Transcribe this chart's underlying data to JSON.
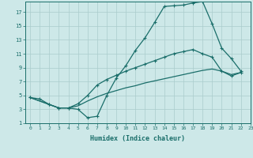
{
  "xlabel": "Humidex (Indice chaleur)",
  "xlim": [
    -0.5,
    23
  ],
  "ylim": [
    1,
    18.5
  ],
  "xticks": [
    0,
    1,
    2,
    3,
    4,
    5,
    6,
    7,
    8,
    9,
    10,
    11,
    12,
    13,
    14,
    15,
    16,
    17,
    18,
    19,
    20,
    21,
    22,
    23
  ],
  "yticks": [
    1,
    3,
    5,
    7,
    9,
    11,
    13,
    15,
    17
  ],
  "bg_color": "#cde8e8",
  "grid_color": "#aacccc",
  "line_color": "#1a6e6a",
  "line1_x": [
    0,
    1,
    2,
    3,
    4,
    5,
    6,
    7,
    8,
    9,
    10,
    11,
    12,
    13,
    14,
    15,
    16,
    17,
    18,
    19,
    20,
    21,
    22
  ],
  "line1_y": [
    4.7,
    4.5,
    3.7,
    3.2,
    3.2,
    3.0,
    1.8,
    2.0,
    5.0,
    7.5,
    9.3,
    11.5,
    13.3,
    15.5,
    17.8,
    17.9,
    18.0,
    18.3,
    18.5,
    15.3,
    11.8,
    10.3,
    8.5
  ],
  "line2_x": [
    0,
    2,
    3,
    4,
    5,
    6,
    7,
    8,
    9,
    10,
    11,
    12,
    13,
    14,
    15,
    16,
    17,
    18,
    19,
    20,
    21,
    22
  ],
  "line2_y": [
    4.7,
    3.7,
    3.2,
    3.2,
    3.8,
    5.0,
    6.5,
    7.3,
    7.9,
    8.5,
    9.0,
    9.5,
    10.0,
    10.5,
    11.0,
    11.3,
    11.6,
    11.0,
    10.5,
    8.5,
    7.8,
    8.3
  ],
  "line3_x": [
    0,
    2,
    3,
    4,
    5,
    6,
    7,
    8,
    9,
    10,
    11,
    12,
    13,
    14,
    15,
    16,
    17,
    18,
    19,
    20,
    21,
    22
  ],
  "line3_y": [
    4.7,
    3.7,
    3.2,
    3.2,
    3.5,
    4.2,
    4.8,
    5.3,
    5.7,
    6.1,
    6.4,
    6.8,
    7.1,
    7.4,
    7.7,
    8.0,
    8.3,
    8.6,
    8.8,
    8.5,
    8.0,
    8.3
  ]
}
